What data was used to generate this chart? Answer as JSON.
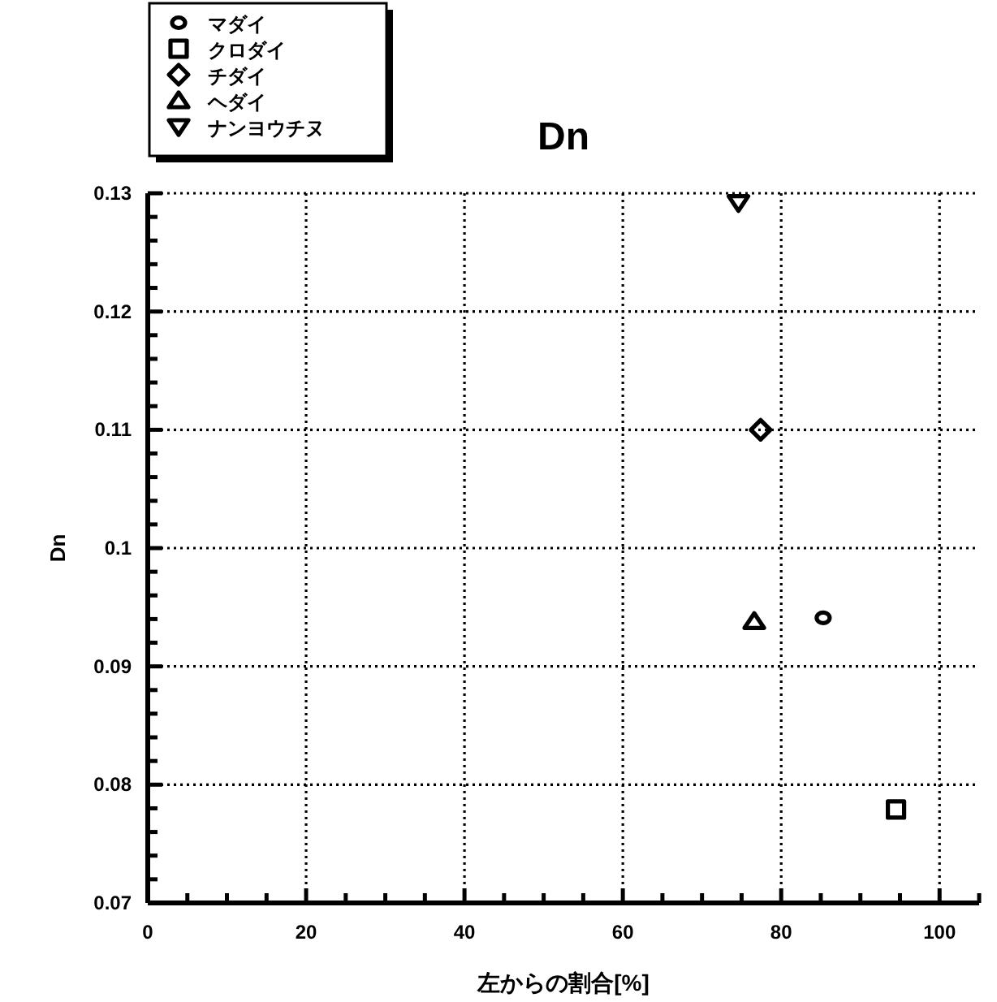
{
  "chart_data": {
    "type": "scatter",
    "title": "Dn",
    "xlabel": "左からの割合[%]",
    "ylabel": "Dn",
    "xlim": [
      0,
      105
    ],
    "ylim": [
      0.07,
      0.13
    ],
    "xticks": [
      0,
      {
        "value": 5,
        "label": null
      },
      {
        "value": 10,
        "label": null
      },
      {
        "value": 15,
        "label": null
      },
      20,
      {
        "value": 25,
        "label": null
      },
      {
        "value": 30,
        "label": null
      },
      {
        "value": 35,
        "label": null
      },
      40,
      {
        "value": 45,
        "label": null
      },
      {
        "value": 50,
        "label": null
      },
      {
        "value": 55,
        "label": null
      },
      60,
      {
        "value": 65,
        "label": null
      },
      {
        "value": 70,
        "label": null
      },
      {
        "value": 75,
        "label": null
      },
      80,
      {
        "value": 85,
        "label": null
      },
      {
        "value": 90,
        "label": null
      },
      {
        "value": 95,
        "label": null
      },
      100,
      {
        "value": 105,
        "label": null
      }
    ],
    "yticks": [
      0.07,
      {
        "value": 0.072,
        "label": null
      },
      {
        "value": 0.074,
        "label": null
      },
      {
        "value": 0.076,
        "label": null
      },
      {
        "value": 0.078,
        "label": null
      },
      0.08,
      {
        "value": 0.082,
        "label": null
      },
      {
        "value": 0.084,
        "label": null
      },
      {
        "value": 0.086,
        "label": null
      },
      {
        "value": 0.088,
        "label": null
      },
      0.09,
      {
        "value": 0.092,
        "label": null
      },
      {
        "value": 0.094,
        "label": null
      },
      {
        "value": 0.096,
        "label": null
      },
      {
        "value": 0.098,
        "label": null
      },
      0.1,
      {
        "value": 0.102,
        "label": null
      },
      {
        "value": 0.104,
        "label": null
      },
      {
        "value": 0.106,
        "label": null
      },
      {
        "value": 0.108,
        "label": null
      },
      0.11,
      {
        "value": 0.112,
        "label": null
      },
      {
        "value": 0.114,
        "label": null
      },
      {
        "value": 0.116,
        "label": null
      },
      {
        "value": 0.118,
        "label": null
      },
      0.12,
      {
        "value": 0.122,
        "label": null
      },
      {
        "value": 0.124,
        "label": null
      },
      {
        "value": 0.126,
        "label": null
      },
      {
        "value": 0.128,
        "label": null
      },
      0.13
    ],
    "grid": true,
    "legend": "top left",
    "series": [
      {
        "name": "マダイ",
        "color": "#000000",
        "marker": "circle",
        "x": [
          85.3
        ],
        "values": [
          0.0941
        ]
      },
      {
        "name": "クロダイ",
        "color": "#000000",
        "marker": "square",
        "x": [
          94.5
        ],
        "values": [
          0.0779
        ]
      },
      {
        "name": "チダイ",
        "color": "#000000",
        "marker": "diamond",
        "x": [
          77.4
        ],
        "values": [
          0.11
        ]
      },
      {
        "name": "ヘダイ",
        "color": "#000000",
        "marker": "triangle",
        "x": [
          76.6
        ],
        "values": [
          0.0938
        ]
      },
      {
        "name": "ナンヨウチヌ",
        "color": "#000000",
        "marker": "triangle-down",
        "x": [
          74.6
        ],
        "values": [
          0.1292
        ]
      }
    ]
  }
}
